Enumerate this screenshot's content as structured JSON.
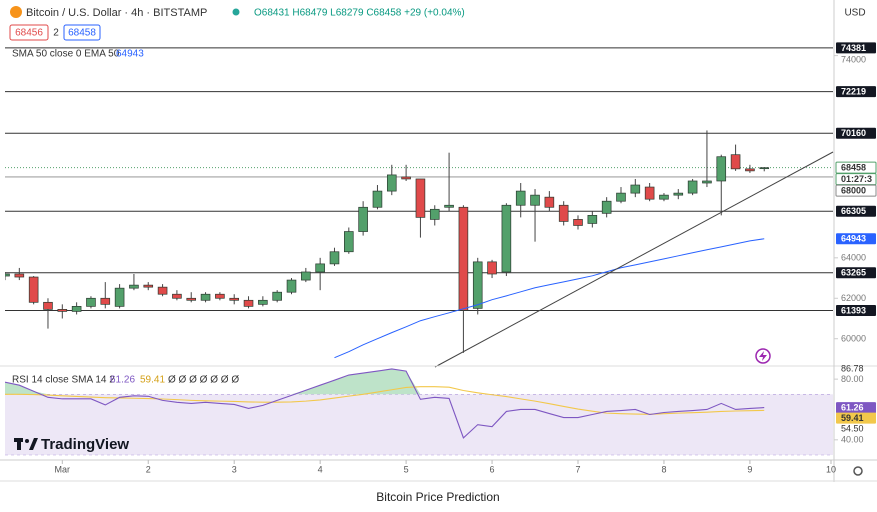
{
  "header": {
    "symbol": "Bitcoin / U.S. Dollar · 4h · BITSTAMP",
    "ohlc": "O68431 H68479 L68279 C68458 +29 (+0.04%)",
    "sell": "68456",
    "spread": "2",
    "buy": "68458",
    "currency": "USD",
    "logo": "TradingView"
  },
  "caption": "Bitcoin Price Prediction",
  "chart_data": [
    {
      "type": "candlestick",
      "xlim": [
        0,
        57.8
      ],
      "xticks": [
        {
          "value": 4,
          "label": "Mar"
        },
        {
          "value": 10,
          "label": "2"
        },
        {
          "value": 16,
          "label": "3"
        },
        {
          "value": 22,
          "label": "4"
        },
        {
          "value": 28,
          "label": "5"
        },
        {
          "value": 34,
          "label": "6"
        },
        {
          "value": 40,
          "label": "7"
        },
        {
          "value": 46,
          "label": "8"
        },
        {
          "value": 52,
          "label": "9"
        },
        {
          "value": 58,
          "label": "10"
        }
      ],
      "ylim": [
        58700,
        76750
      ],
      "yticks": [
        74000,
        64000,
        62000,
        60000
      ],
      "up_color": "#53a06b",
      "down_color": "#e04a4a",
      "wick_color": "#444444",
      "open": [
        63100,
        63200,
        63050,
        61800,
        61450,
        61350,
        61600,
        62000,
        61600,
        62500,
        62650,
        62550,
        62200,
        62000,
        61900,
        62200,
        62000,
        61900,
        61700,
        61900,
        62300,
        62900,
        63300,
        63700,
        64300,
        65300,
        66500,
        67300,
        68000,
        67900,
        65900,
        66500,
        66500,
        61500,
        63800,
        63300,
        66600,
        66600,
        67000,
        66600,
        65900,
        65700,
        66200,
        66800,
        67200,
        67500,
        66900,
        67100,
        67200,
        67700,
        67800,
        69100,
        68400,
        68431
      ],
      "high": [
        63300,
        63500,
        63100,
        62000,
        61700,
        61800,
        62100,
        62800,
        62700,
        63200,
        62800,
        62700,
        62400,
        62300,
        62300,
        62300,
        62200,
        62100,
        62100,
        62400,
        63000,
        63500,
        64000,
        64500,
        65500,
        66800,
        67600,
        68600,
        68600,
        67900,
        66600,
        69200,
        66600,
        64000,
        63900,
        66700,
        67700,
        67400,
        67300,
        66800,
        66100,
        66300,
        67000,
        67500,
        67900,
        67700,
        67200,
        67400,
        67900,
        70300,
        69100,
        69600,
        68600,
        68479
      ],
      "low": [
        62900,
        62900,
        61700,
        60500,
        61000,
        61200,
        61500,
        61500,
        61500,
        62400,
        62400,
        62100,
        61900,
        61800,
        61800,
        61900,
        61700,
        61500,
        61600,
        61800,
        62200,
        62800,
        62400,
        63600,
        64200,
        65100,
        66400,
        67100,
        67800,
        65000,
        65600,
        66300,
        59300,
        61200,
        63000,
        63100,
        66000,
        64800,
        66300,
        65600,
        65400,
        65500,
        66000,
        66700,
        67000,
        66800,
        66800,
        66900,
        67100,
        67500,
        66100,
        68300,
        68200,
        68279
      ],
      "close": [
        63200,
        63050,
        61800,
        61450,
        61350,
        61600,
        62000,
        61700,
        62500,
        62650,
        62550,
        62200,
        62000,
        61900,
        62200,
        62000,
        61900,
        61600,
        61900,
        62300,
        62900,
        63300,
        63700,
        64300,
        65300,
        66500,
        67300,
        68100,
        67900,
        66000,
        66400,
        66600,
        61400,
        63800,
        63200,
        66600,
        67300,
        67100,
        66500,
        65800,
        65600,
        66100,
        66800,
        67200,
        67600,
        66900,
        67100,
        67200,
        67800,
        67800,
        69000,
        68400,
        68300,
        68458
      ],
      "indicator": {
        "label": "SMA 50 close 0 EMA 50",
        "value": 64943,
        "color": "#2962ff",
        "values": [
          null,
          null,
          null,
          null,
          null,
          null,
          null,
          null,
          null,
          null,
          null,
          null,
          null,
          null,
          null,
          null,
          null,
          null,
          null,
          null,
          null,
          null,
          null,
          59060,
          59360,
          59700,
          60000,
          60300,
          60590,
          60890,
          61090,
          61280,
          61480,
          61680,
          61930,
          62120,
          62320,
          62520,
          62670,
          62810,
          62960,
          63110,
          63310,
          63510,
          63650,
          63800,
          63950,
          64100,
          64250,
          64400,
          64540,
          64690,
          64840,
          64943
        ]
      },
      "levels": [
        74381,
        72219,
        70160,
        66305,
        63265,
        61393
      ],
      "level_color": "#333333",
      "current_price": 68458,
      "countdown": "01:27:3",
      "current_color": "#53a06b",
      "marker_price": 68000
    },
    {
      "type": "line",
      "label": "RSI 14 close SMA 14 2",
      "inputs": "Ø Ø Ø Ø Ø Ø Ø",
      "xlim": [
        0,
        57.8
      ],
      "ylim": [
        26.7,
        88
      ],
      "yticks": [
        {
          "value": 80,
          "label": "80.00"
        },
        {
          "value": 40,
          "label": "40.00"
        }
      ],
      "range_labels": [
        {
          "value": 86.78,
          "label": "86.78"
        },
        {
          "value": 54.5,
          "label": "54.50"
        }
      ],
      "band": [
        70,
        30
      ],
      "band_color": "#ede7f6",
      "over_color": "#b7e0c3",
      "rsi": {
        "value": 61.26,
        "color": "#7e57c2",
        "values": [
          78,
          76,
          72,
          68,
          67,
          67,
          67,
          63,
          68,
          69,
          68.7,
          66,
          64.7,
          64,
          64.7,
          64,
          63.3,
          60.7,
          62.7,
          66,
          69.3,
          72.7,
          76,
          79.3,
          82.7,
          84,
          85.3,
          86.7,
          85.3,
          66.7,
          68,
          67.3,
          41.3,
          50,
          48.7,
          58.7,
          60,
          60,
          57.3,
          54.7,
          54.7,
          56.7,
          58.7,
          59.3,
          60,
          56.7,
          58,
          58.7,
          59.3,
          60,
          64,
          60,
          60.7,
          61.26
        ]
      },
      "sma": {
        "value": 59.41,
        "color": "#f2c84b",
        "values": [
          70,
          70,
          69.8,
          69.5,
          69,
          68.6,
          68.2,
          67.8,
          67.6,
          67.4,
          67.2,
          66.9,
          66.5,
          66,
          65.7,
          65.5,
          65.3,
          65,
          64.8,
          64.8,
          65,
          65.5,
          66.3,
          67.5,
          68.8,
          70,
          71.5,
          73,
          74.5,
          75,
          75,
          74.7,
          72.5,
          71,
          69.7,
          68.5,
          67,
          65.5,
          63.8,
          62,
          60.3,
          58.9,
          57.6,
          57.2,
          57,
          56.8,
          57.2,
          57.6,
          57.9,
          58.2,
          58.7,
          59,
          59.2,
          59.41
        ]
      }
    }
  ]
}
